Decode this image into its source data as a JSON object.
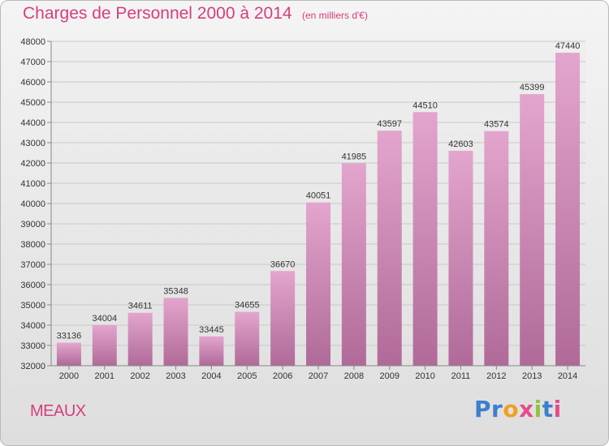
{
  "header": {
    "title": "Charges de Personnel 2000 à 2014",
    "subtitle": "(en milliers d'€)"
  },
  "footer": {
    "location": "MEAUX",
    "brand_letters": [
      "P",
      "r",
      "o",
      "x",
      "i",
      "t",
      "i"
    ]
  },
  "colors": {
    "accent": "#d63e7e",
    "bar_top": "#e3a5cd",
    "bar_bottom": "#b06a99",
    "brand": [
      "#3b7fd0",
      "#3b7fd0",
      "#f0a020",
      "#e84a8a",
      "#8cc63f",
      "#3b7fd0",
      "#e84a8a"
    ]
  },
  "chart_data": {
    "type": "bar",
    "title": "Charges de Personnel 2000 à 2014",
    "subtitle": "(en milliers d'€)",
    "categories": [
      "2000",
      "2001",
      "2002",
      "2003",
      "2004",
      "2005",
      "2006",
      "2007",
      "2008",
      "2009",
      "2010",
      "2011",
      "2012",
      "2013",
      "2014"
    ],
    "values": [
      33136,
      34004,
      34611,
      35348,
      33445,
      34655,
      36670,
      40051,
      41985,
      43597,
      44510,
      42603,
      43574,
      45399,
      47440
    ],
    "ylim": [
      32000,
      48000
    ],
    "yticks": [
      32000,
      33000,
      34000,
      35000,
      36000,
      37000,
      38000,
      39000,
      40000,
      41000,
      42000,
      43000,
      44000,
      45000,
      46000,
      47000,
      48000
    ],
    "grid": true,
    "data_labels": true
  }
}
